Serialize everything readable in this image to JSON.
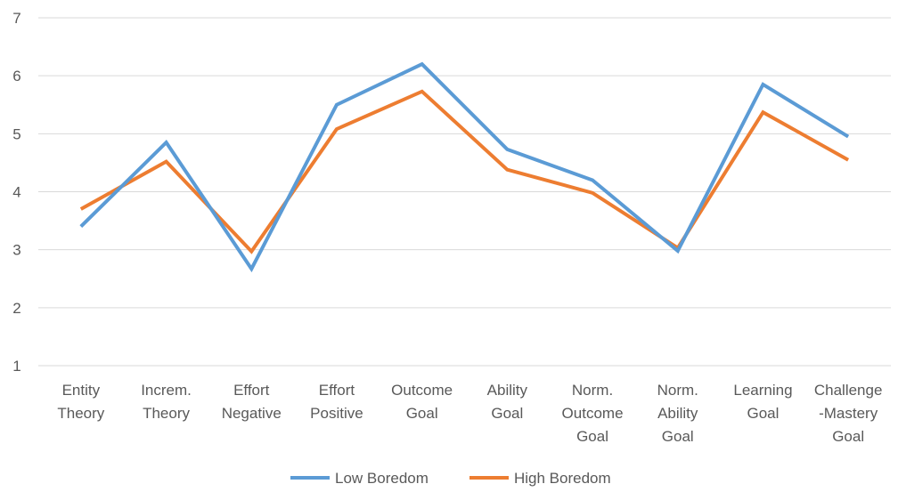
{
  "chart_data": {
    "type": "line",
    "title": "",
    "xlabel": "",
    "ylabel": "",
    "ylim": [
      1,
      7
    ],
    "yticks": [
      "1",
      "2",
      "3",
      "4",
      "5",
      "6",
      "7"
    ],
    "grid": true,
    "legend_position": "bottom",
    "categories": [
      [
        "Entity",
        "Theory"
      ],
      [
        "Increm.",
        "Theory"
      ],
      [
        "Effort",
        "Negative"
      ],
      [
        "Effort",
        "Positive"
      ],
      [
        "Outcome",
        "Goal"
      ],
      [
        "Ability",
        "Goal"
      ],
      [
        "Norm.",
        "Outcome",
        "Goal"
      ],
      [
        "Norm.",
        "Ability",
        "Goal"
      ],
      [
        "Learning",
        "Goal"
      ],
      [
        "Challenge",
        "-Mastery",
        "Goal"
      ]
    ],
    "series": [
      {
        "name": "Low Boredom",
        "color": "#5B9BD5",
        "values": [
          3.4,
          4.85,
          2.67,
          5.5,
          6.2,
          4.73,
          4.2,
          2.98,
          5.85,
          4.95
        ]
      },
      {
        "name": "High Boredom",
        "color": "#ED7D31",
        "values": [
          3.7,
          4.52,
          2.97,
          5.08,
          5.73,
          4.38,
          3.98,
          3.03,
          5.37,
          4.55
        ]
      }
    ]
  }
}
